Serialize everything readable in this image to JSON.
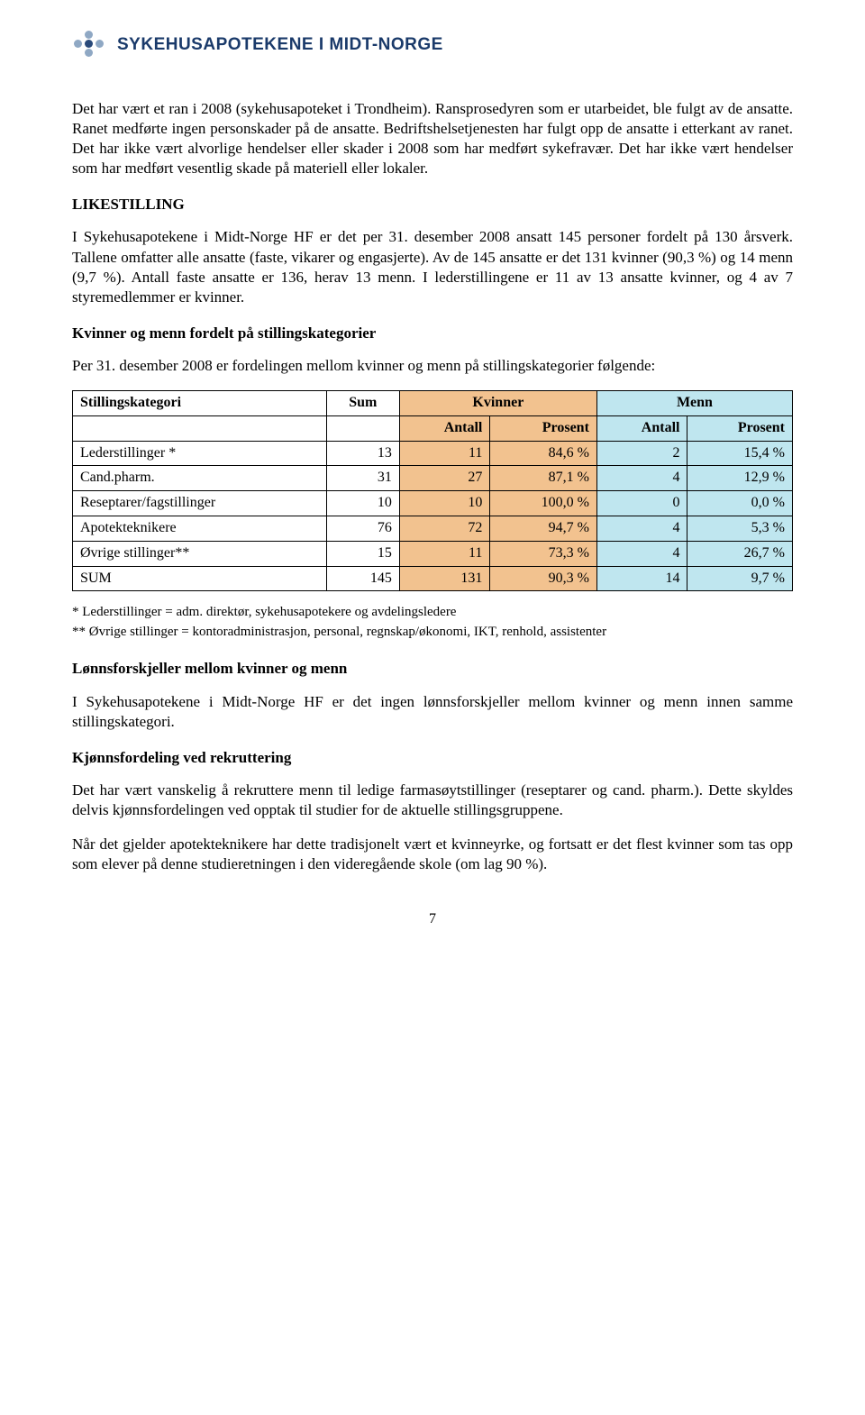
{
  "header": {
    "brand": "SYKEHUSAPOTEKENE I MIDT-NORGE"
  },
  "colors": {
    "kvinner_bg": "#f2c28f",
    "menn_bg": "#bfe6ef",
    "brand_text": "#1a3a6a",
    "logo_light": "#8fa8c4",
    "logo_dark": "#2a4a7a"
  },
  "paragraphs": {
    "p1": "Det har vært et ran i 2008 (sykehusapoteket i Trondheim). Ransprosedyren som er utarbeidet, ble fulgt av de ansatte. Ranet medførte ingen personskader på de ansatte. Bedriftshelsetjenesten har fulgt opp de ansatte i etterkant av ranet. Det har ikke vært alvorlige hendelser eller skader i 2008 som har medført sykefravær. Det har ikke vært hendelser som har medført vesentlig skade på materiell eller lokaler.",
    "h_likestilling": "LIKESTILLING",
    "p2": "I Sykehusapotekene i Midt-Norge HF er det per 31. desember 2008 ansatt 145 personer fordelt på 130 årsverk. Tallene omfatter alle ansatte (faste, vikarer og engasjerte). Av de 145 ansatte er det 131 kvinner (90,3 %) og 14 menn (9,7 %). Antall faste ansatte er 136, herav 13 menn. I lederstillingene er 11 av 13 ansatte kvinner, og 4 av 7 styremedlemmer er kvinner.",
    "h_kvinner_menn": "Kvinner og menn fordelt på stillingskategorier",
    "p3": "Per 31. desember 2008 er fordelingen mellom kvinner og menn på stillingskategorier følgende:",
    "fn1": "* Lederstillinger = adm. direktør, sykehusapotekere og avdelingsledere",
    "fn2": "** Øvrige stillinger = kontoradministrasjon, personal, regnskap/økonomi, IKT, renhold, assistenter",
    "h_lonn": "Lønnsforskjeller mellom kvinner og menn",
    "p4": "I Sykehusapotekene i Midt-Norge HF er det ingen lønnsforskjeller mellom kvinner og menn innen samme stillingskategori.",
    "h_kjonn": "Kjønnsfordeling ved rekruttering",
    "p5": "Det har vært vanskelig å rekruttere menn til ledige farmasøytstillinger (reseptarer og cand. pharm.). Dette skyldes delvis kjønnsfordelingen ved opptak til studier for de aktuelle stillingsgruppene.",
    "p6": "Når det gjelder apotekteknikere har dette tradisjonelt vært et kvinneyrke, og fortsatt er det flest kvinner som tas opp som elever på denne studieretningen i den videregående skole (om lag 90 %)."
  },
  "table": {
    "head": {
      "col1": "Stillingskategori",
      "col2": "Sum",
      "col3": "Kvinner",
      "col4": "Menn",
      "sub_antall": "Antall",
      "sub_prosent": "Prosent"
    },
    "rows": [
      {
        "kat": "Lederstillinger *",
        "sum": "13",
        "k_ant": "11",
        "k_pct": "84,6 %",
        "m_ant": "2",
        "m_pct": "15,4 %"
      },
      {
        "kat": "Cand.pharm.",
        "sum": "31",
        "k_ant": "27",
        "k_pct": "87,1 %",
        "m_ant": "4",
        "m_pct": "12,9 %"
      },
      {
        "kat": "Reseptarer/fagstillinger",
        "sum": "10",
        "k_ant": "10",
        "k_pct": "100,0 %",
        "m_ant": "0",
        "m_pct": "0,0 %"
      },
      {
        "kat": "Apotekteknikere",
        "sum": "76",
        "k_ant": "72",
        "k_pct": "94,7 %",
        "m_ant": "4",
        "m_pct": "5,3 %"
      },
      {
        "kat": "Øvrige stillinger**",
        "sum": "15",
        "k_ant": "11",
        "k_pct": "73,3 %",
        "m_ant": "4",
        "m_pct": "26,7 %"
      },
      {
        "kat": "SUM",
        "sum": "145",
        "k_ant": "131",
        "k_pct": "90,3 %",
        "m_ant": "14",
        "m_pct": "9,7 %"
      }
    ]
  },
  "page_number": "7"
}
